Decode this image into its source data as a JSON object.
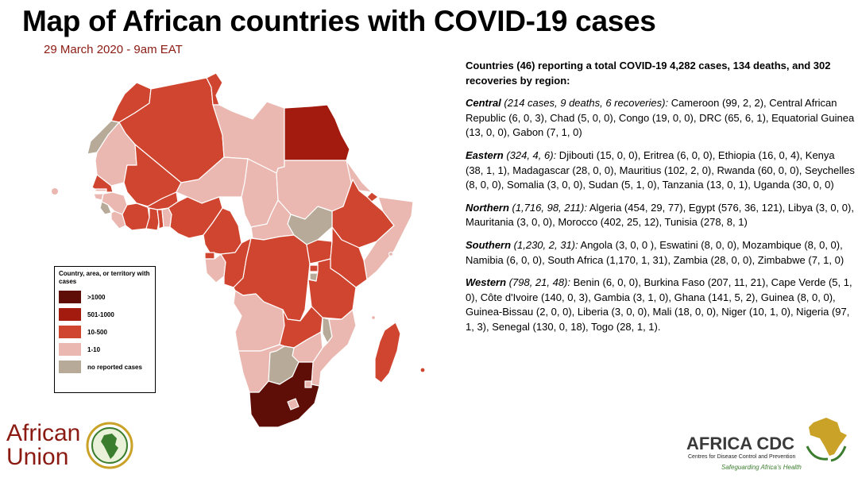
{
  "title": "Map of African countries with COVID-19 cases",
  "subtitle": "29 March 2020 - 9am EAT",
  "colors": {
    "gt1000": "#5e0e07",
    "c501_1000": "#a31b0e",
    "c10_500": "#d04530",
    "c1_10": "#eab8b0",
    "none": "#b7aa98"
  },
  "legend": {
    "title": "Country, area, or territory with cases",
    "items": [
      {
        "label": ">1000",
        "key": "gt1000"
      },
      {
        "label": "501-1000",
        "key": "c501_1000"
      },
      {
        "label": "10-500",
        "key": "c10_500"
      },
      {
        "label": "1-10",
        "key": "c1_10"
      },
      {
        "label": "no reported cases",
        "key": "none"
      }
    ]
  },
  "summary": "Countries (46) reporting a total COVID-19 4,282 cases, 134 deaths, and 302 recoveries by region:",
  "regions": [
    {
      "name": "Central",
      "stats": " (214 cases, 9 deaths, 6 recoveries):",
      "text": "  Cameroon (99, 2, 2), Central African Republic (6, 0, 3), Chad (5, 0, 0), Congo (19, 0, 0), DRC (65, 6, 1), Equatorial Guinea (13, 0, 0), Gabon (7, 1, 0)"
    },
    {
      "name": "Eastern",
      "stats": " (324, 4, 6):",
      "text": " Djibouti (15, 0, 0), Eritrea (6, 0, 0), Ethiopia (16, 0, 4), Kenya (38, 1, 1), Madagascar (28, 0, 0), Mauritius (102, 2, 0), Rwanda (60, 0, 0), Seychelles (8, 0, 0), Somalia (3, 0, 0), Sudan (5, 1, 0), Tanzania (13, 0, 1), Uganda (30, 0, 0)"
    },
    {
      "name": "Northern",
      "stats": " (1,716, 98, 211):",
      "text": " Algeria (454, 29, 77), Egypt (576, 36, 121), Libya (3, 0, 0), Mauritania (3, 0, 0), Morocco (402, 25, 12), Tunisia (278, 8, 1)"
    },
    {
      "name": "Southern",
      "stats": " (1,230, 2, 31):",
      "text": " Angola (3, 0, 0 ), Eswatini (8, 0, 0), Mozambique (8, 0, 0),  Namibia (6, 0, 0), South Africa (1,170, 1, 31), Zambia (28, 0, 0), Zimbabwe (7, 1, 0)"
    },
    {
      "name": "Western",
      "stats": " (798, 21, 48):",
      "text": " Benin (6, 0, 0), Burkina Faso (207, 11, 21), Cape Verde (5, 1, 0), Côte d'Ivoire (140, 0, 3), Gambia (3, 1, 0), Ghana (141, 5, 2), Guinea (8, 0, 0), Guinea-Bissau (2, 0, 0), Liberia (3, 0, 0), Mali (18, 0, 0), Niger (10, 1, 0), Nigeria (97, 1, 3), Senegal (130, 0, 18), Togo (28, 1, 1)."
    }
  ],
  "logos": {
    "au_line1": "African",
    "au_line2": "Union",
    "cdc_name": "AFRICA CDC",
    "cdc_tagline": "Centres for Disease Control and Prevention",
    "cdc_motto": "Safeguarding Africa's Health"
  }
}
